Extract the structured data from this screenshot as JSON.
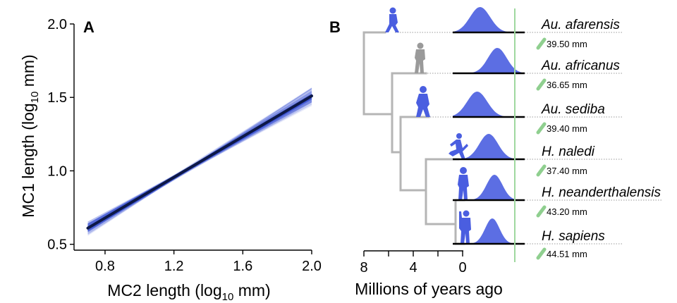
{
  "chart_data": [
    {
      "panel": "A",
      "type": "line",
      "xlabel_main": "MC2 length (log",
      "xlabel_sub": "10",
      "xlabel_tail": " mm)",
      "ylabel_main": "MC1 length (log",
      "ylabel_sub": "10",
      "ylabel_tail": " mm)",
      "xlim": [
        0.62,
        2.0
      ],
      "ylim": [
        0.46,
        2.0
      ],
      "x_ticks": [
        "0.8",
        "1.2",
        "1.6",
        "2.0"
      ],
      "x_tick_values": [
        0.8,
        1.2,
        1.6,
        2.0
      ],
      "y_ticks": [
        "0.5",
        "1.0",
        "1.5",
        "2.0"
      ],
      "y_tick_values": [
        0.5,
        1.0,
        1.5,
        2.0
      ],
      "mean_line": {
        "x": [
          0.7,
          2.0
        ],
        "y": [
          0.61,
          1.51
        ]
      },
      "posterior_lines": {
        "x_range": [
          0.7,
          2.0
        ],
        "pivot_x": 1.3,
        "pivot_y": 1.025,
        "slope_mean": 0.692,
        "slope_spread": 0.11,
        "count": 160
      },
      "colors": {
        "samples": "#3a4fd8",
        "mean": "#0d1846"
      }
    },
    {
      "panel": "B",
      "type": "tree",
      "xlabel": "Millions of years ago",
      "x_ticks": [
        "8",
        "4",
        "0"
      ],
      "x_tick_values": [
        8,
        4,
        0
      ],
      "species": [
        {
          "name": "Au. afarensis",
          "value": "39.50 mm",
          "tip_age": 5.6,
          "silhouette": "walking-hominin-icon",
          "silhouette_color": "#4a5ee0",
          "ridge_peak": 0.38,
          "ridge_sd": 0.14
        },
        {
          "name": "Au. africanus",
          "value": "36.65 mm",
          "tip_age": 3.3,
          "silhouette": "standing-hominin-icon",
          "silhouette_color": "#9a9a9a",
          "ridge_peak": 0.62,
          "ridge_sd": 0.13
        },
        {
          "name": "Au. sediba",
          "value": "39.40 mm",
          "tip_age": 2.8,
          "silhouette": "crouching-hominin-icon",
          "silhouette_color": "#4a5ee0",
          "ridge_peak": 0.34,
          "ridge_sd": 0.14
        },
        {
          "name": "H. naledi",
          "value": "37.40 mm",
          "tip_age": 0.55,
          "silhouette": "running-hominin-icon",
          "silhouette_color": "#4a5ee0",
          "ridge_peak": 0.5,
          "ridge_sd": 0.13
        },
        {
          "name": "H. neanderthalensis",
          "value": "43.20 mm",
          "tip_age": 0.1,
          "silhouette": "standing-hominin-icon",
          "silhouette_color": "#4a5ee0",
          "ridge_peak": 0.58,
          "ridge_sd": 0.11
        },
        {
          "name": "H. sapiens",
          "value": "44.51 mm",
          "tip_age": 0.05,
          "silhouette": "waving-hominin-icon",
          "silhouette_color": "#4a5ee0",
          "ridge_peak": 0.55,
          "ridge_sd": 0.1
        }
      ],
      "colors": {
        "branches": "#b5b5b5",
        "ridge": "#4a5ee0",
        "reference_line": "#9fd89f",
        "bone_icon": "#8fcf8f"
      }
    }
  ]
}
